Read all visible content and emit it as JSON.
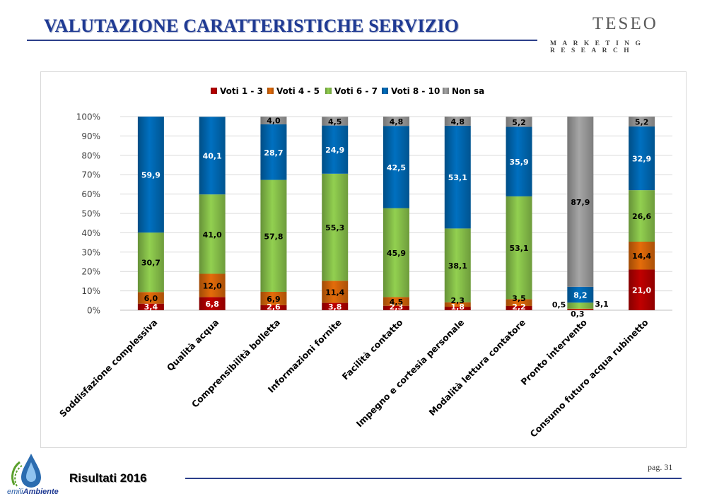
{
  "header": {
    "title": "VALUTAZIONE CARATTERISTICHE SERVIZIO",
    "brand": "TESEO",
    "brand_sub": "MARKETING RESEARCH"
  },
  "footer": {
    "results": "Risultati 2016",
    "page": "pag. 31",
    "logo_text_a": "emili",
    "logo_text_b": "Ambiente"
  },
  "colors": {
    "title": "#1f3a93",
    "voti_1_3": "#c00000",
    "voti_4_5": "#e46c0a",
    "voti_6_7": "#92d050",
    "voti_8_10": "#0070c0",
    "non_sa": "#a6a6a6"
  },
  "chart_data": {
    "type": "bar",
    "stacked": "percent",
    "categories": [
      "Soddisfazione complessiva",
      "Qualità acqua",
      "Comprensibilità bolletta",
      "Informazioni fornite",
      "Facilità contatto",
      "Impegno e cortesia personale",
      "Modalità lettura contatore",
      "Pronto intervento",
      "Consumo futuro acqua rubinetto"
    ],
    "series": [
      {
        "name": "Voti 1 - 3",
        "values": [
          3.4,
          6.8,
          2.6,
          3.8,
          2.3,
          1.8,
          2.2,
          0.5,
          21.0
        ],
        "labels": [
          "3,4",
          "6,8",
          "2,6",
          "3,8",
          "2,3",
          "1,8",
          "2,2",
          "0,5",
          "21,0"
        ]
      },
      {
        "name": "Voti 4 - 5",
        "values": [
          6.0,
          12.0,
          6.9,
          11.4,
          4.5,
          2.3,
          3.5,
          0.3,
          14.4
        ],
        "labels": [
          "6,0",
          "12,0",
          "6,9",
          "11,4",
          "4,5",
          "2,3",
          "3,5",
          "0,3",
          "14,4"
        ]
      },
      {
        "name": "Voti 6 - 7",
        "values": [
          30.7,
          41.0,
          57.8,
          55.3,
          45.9,
          38.1,
          53.1,
          3.1,
          26.6
        ],
        "labels": [
          "30,7",
          "41,0",
          "57,8",
          "55,3",
          "45,9",
          "38,1",
          "53,1",
          "3,1",
          "26,6"
        ]
      },
      {
        "name": "Voti 8 - 10",
        "values": [
          59.9,
          40.1,
          28.7,
          24.9,
          42.5,
          53.1,
          35.9,
          8.2,
          32.9
        ],
        "labels": [
          "59,9",
          "40,1",
          "28,7",
          "24,9",
          "42,5",
          "53,1",
          "35,9",
          "8,2",
          "32,9"
        ]
      },
      {
        "name": "Non sa",
        "values": [
          0,
          0,
          4.0,
          4.5,
          4.8,
          4.8,
          5.2,
          87.9,
          5.2
        ],
        "labels": [
          "",
          "",
          "4,0",
          "4,5",
          "4,8",
          "4,8",
          "5,2",
          "87,9",
          "5,2"
        ]
      }
    ],
    "yticks": [
      "0%",
      "10%",
      "20%",
      "30%",
      "40%",
      "50%",
      "60%",
      "70%",
      "80%",
      "90%",
      "100%"
    ],
    "ylim": [
      0,
      100
    ],
    "grid": true,
    "legend": "top"
  }
}
